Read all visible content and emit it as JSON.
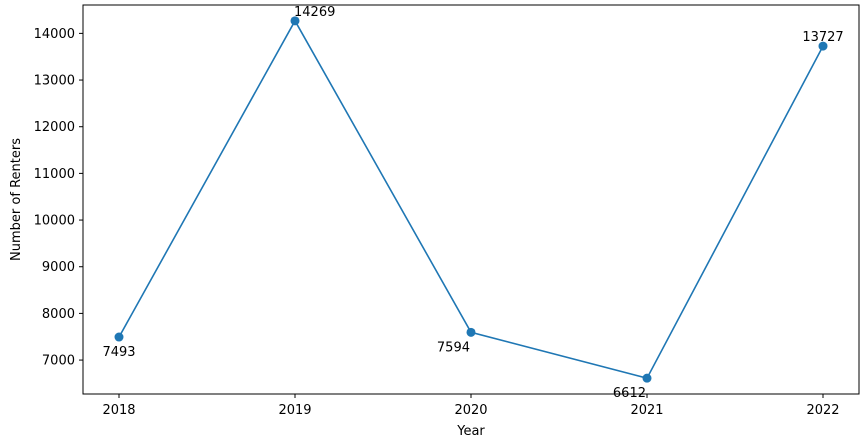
{
  "chart_data": {
    "type": "line",
    "title": "",
    "xlabel": "Year",
    "ylabel": "Number of Renters",
    "categories": [
      "2018",
      "2019",
      "2020",
      "2021",
      "2022"
    ],
    "series": [
      {
        "values": [
          7493,
          14269,
          7594,
          6612,
          13727
        ],
        "color": "#1f77b4",
        "marker": "circle"
      }
    ],
    "data_labels": [
      "7493",
      "14269",
      "7594",
      "6612",
      "13727"
    ],
    "yticks": [
      7000,
      8000,
      9000,
      10000,
      11000,
      12000,
      13000,
      14000
    ],
    "ylim": [
      6273,
      14608
    ],
    "grid": false,
    "legend": "none"
  }
}
